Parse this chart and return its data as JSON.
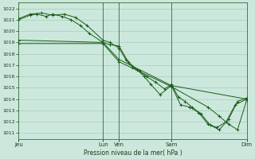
{
  "background_color": "#cce8dc",
  "grid_color": "#aaccbb",
  "line_color": "#1a5c1a",
  "title": "Pression niveau de la mer( hPa )",
  "ylim": [
    1010.5,
    1022.5
  ],
  "yticks": [
    1011,
    1012,
    1013,
    1014,
    1015,
    1016,
    1017,
    1018,
    1019,
    1020,
    1021,
    1022
  ],
  "xlim": [
    0,
    100
  ],
  "xtick_positions": [
    0,
    37,
    44,
    67,
    100
  ],
  "xtick_labels": [
    "Jeu",
    "Lun",
    "Ven",
    "Sam",
    "Dim"
  ],
  "vlines_x": [
    37,
    44,
    67,
    100
  ],
  "line1_x": [
    0,
    5,
    8,
    12,
    15,
    19,
    23,
    27,
    31,
    37,
    40,
    44,
    48,
    52,
    55,
    58,
    62,
    67,
    71,
    75,
    79,
    83,
    87,
    91,
    95,
    100
  ],
  "line1_y": [
    1021.0,
    1021.4,
    1021.5,
    1021.3,
    1021.5,
    1021.3,
    1021.0,
    1020.5,
    1019.8,
    1019.0,
    1018.8,
    1018.7,
    1017.3,
    1016.6,
    1016.0,
    1015.3,
    1014.4,
    1015.2,
    1013.5,
    1013.3,
    1012.8,
    1011.8,
    1011.5,
    1012.0,
    1013.5,
    1014.0
  ],
  "line2_x": [
    0,
    5,
    10,
    15,
    20,
    25,
    30,
    37,
    40,
    44,
    47,
    50,
    53,
    56,
    60,
    64,
    67,
    70,
    73,
    76,
    80,
    84,
    88,
    92,
    96,
    100
  ],
  "line2_y": [
    1021.1,
    1021.5,
    1021.6,
    1021.4,
    1021.5,
    1021.2,
    1020.5,
    1019.2,
    1019.0,
    1018.5,
    1017.5,
    1016.8,
    1016.5,
    1016.0,
    1015.5,
    1014.9,
    1015.3,
    1014.2,
    1013.8,
    1013.3,
    1012.7,
    1011.7,
    1011.3,
    1012.2,
    1013.8,
    1014.1
  ],
  "line3_x": [
    0,
    37,
    44,
    67,
    100
  ],
  "line3_y": [
    1019.2,
    1019.0,
    1017.5,
    1015.2,
    1014.0
  ],
  "line4_x": [
    0,
    37,
    44,
    67,
    83,
    88,
    92,
    96,
    100
  ],
  "line4_y": [
    1018.9,
    1018.9,
    1017.3,
    1015.1,
    1013.3,
    1012.5,
    1011.8,
    1011.3,
    1013.9
  ],
  "figsize": [
    3.2,
    2.0
  ],
  "dpi": 100
}
